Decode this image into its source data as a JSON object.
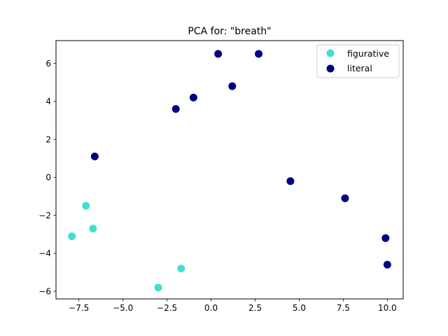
{
  "chart_data": {
    "type": "scatter",
    "title": "PCA for: \"breath\"",
    "xlabel": "",
    "ylabel": "",
    "xlim": [
      -8.8,
      10.9
    ],
    "ylim": [
      -6.4,
      7.2
    ],
    "grid": false,
    "legend_position": "top-right",
    "x_ticks": [
      -7.5,
      -5.0,
      -2.5,
      0.0,
      2.5,
      5.0,
      7.5,
      10.0
    ],
    "x_tick_labels": [
      "−7.5",
      "−5.0",
      "−2.5",
      "0.0",
      "2.5",
      "5.0",
      "7.5",
      "10.0"
    ],
    "y_ticks": [
      -6,
      -4,
      -2,
      0,
      2,
      4,
      6
    ],
    "y_tick_labels": [
      "−6",
      "−4",
      "−2",
      "0",
      "2",
      "4",
      "6"
    ],
    "series": [
      {
        "name": "figurative",
        "color": "#40e0d0",
        "points": [
          {
            "x": -7.9,
            "y": -3.1
          },
          {
            "x": -7.1,
            "y": -1.5
          },
          {
            "x": -6.7,
            "y": -2.7
          },
          {
            "x": -3.0,
            "y": -5.8
          },
          {
            "x": -1.7,
            "y": -4.8
          }
        ]
      },
      {
        "name": "literal",
        "color": "#000080",
        "points": [
          {
            "x": -6.6,
            "y": 1.1
          },
          {
            "x": -2.0,
            "y": 3.6
          },
          {
            "x": -1.0,
            "y": 4.2
          },
          {
            "x": 0.4,
            "y": 6.5
          },
          {
            "x": 1.2,
            "y": 4.8
          },
          {
            "x": 2.7,
            "y": 6.5
          },
          {
            "x": 4.5,
            "y": -0.2
          },
          {
            "x": 7.6,
            "y": -1.1
          },
          {
            "x": 9.9,
            "y": -3.2
          },
          {
            "x": 10.0,
            "y": -4.6
          }
        ]
      }
    ]
  }
}
